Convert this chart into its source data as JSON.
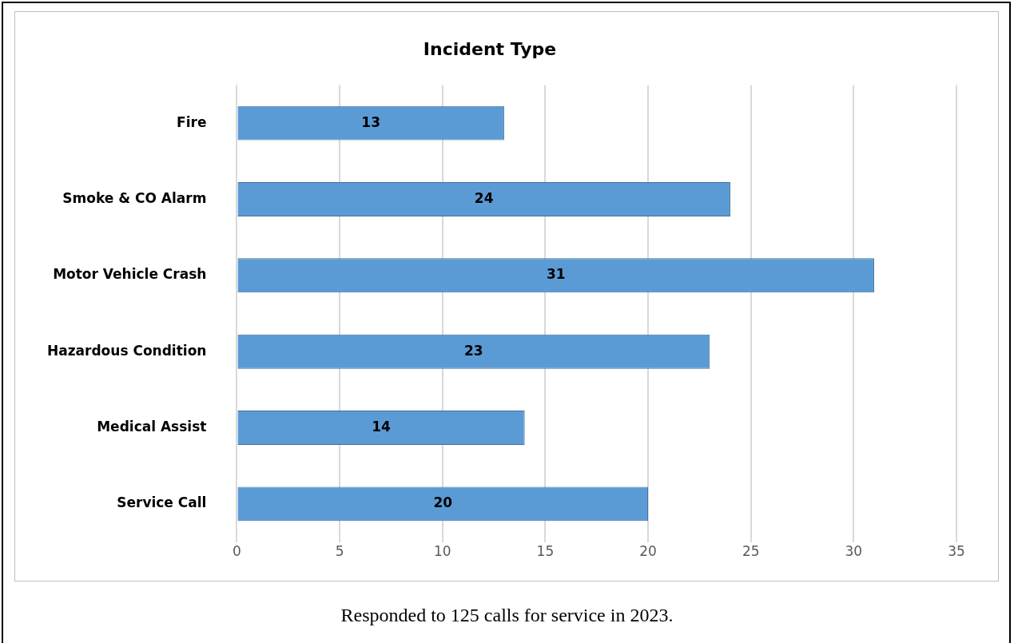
{
  "chart_data": {
    "type": "bar",
    "orientation": "horizontal",
    "title": "Incident Type",
    "categories": [
      "Fire",
      "Smoke & CO Alarm",
      "Motor Vehicle Crash",
      "Hazardous Condition",
      "Medical Assist",
      "Service Call"
    ],
    "values": [
      13,
      24,
      31,
      23,
      14,
      20
    ],
    "color": "#5b9bd5",
    "xlim": [
      0,
      35
    ],
    "xticks": [
      0,
      5,
      10,
      15,
      20,
      25,
      30,
      35
    ],
    "grid": "x",
    "data_labels": true,
    "legend": false,
    "annotations": [
      "Responded to 125 calls for service in 2023."
    ]
  }
}
